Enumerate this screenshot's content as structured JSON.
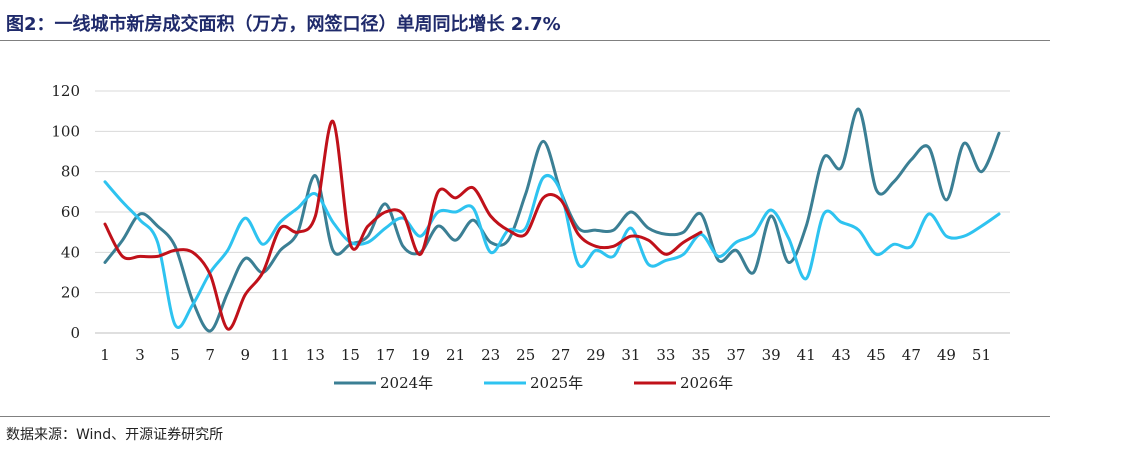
{
  "header": {
    "title": "图2：一线城市新房成交面积（万方，网签口径）单周同比增长 2.7%"
  },
  "footer": {
    "source": "数据来源：Wind、开源证券研究所"
  },
  "chart_data": {
    "type": "line",
    "title": "图2：一线城市新房成交面积（万方，网签口径）单周同比增长 2.7%",
    "xlabel": "",
    "ylabel": "",
    "ylim": [
      0,
      120
    ],
    "yticks": [
      0,
      20,
      40,
      60,
      80,
      100,
      120
    ],
    "xticks": [
      1,
      3,
      5,
      7,
      9,
      11,
      13,
      15,
      17,
      19,
      21,
      23,
      25,
      27,
      29,
      31,
      33,
      35,
      37,
      39,
      41,
      43,
      45,
      47,
      49,
      51
    ],
    "xlim": [
      1,
      52
    ],
    "grid": "horizontal",
    "legend": "bottom",
    "series": [
      {
        "name": "2024年",
        "color": "#3b7f94",
        "x": [
          1,
          2,
          3,
          4,
          5,
          6,
          7,
          8,
          9,
          10,
          11,
          12,
          13,
          14,
          15,
          16,
          17,
          18,
          19,
          20,
          21,
          22,
          23,
          24,
          25,
          26,
          27,
          28,
          29,
          30,
          31,
          32,
          33,
          34,
          35,
          36,
          37,
          38,
          39,
          40,
          41,
          42,
          43,
          44,
          45,
          46,
          47,
          48,
          49,
          50,
          51,
          52
        ],
        "values": [
          35,
          46,
          59,
          53,
          43,
          16,
          1,
          20,
          37,
          30,
          41,
          50,
          78,
          41,
          44,
          48,
          64,
          43,
          40,
          53,
          46,
          56,
          45,
          46,
          69,
          95,
          70,
          52,
          51,
          51,
          60,
          52,
          49,
          50,
          59,
          36,
          41,
          30,
          58,
          35,
          53,
          87,
          82,
          111,
          71,
          75,
          86,
          92,
          66,
          94,
          80,
          99
        ]
      },
      {
        "name": "2025年",
        "color": "#2ec3f0",
        "x": [
          1,
          2,
          3,
          4,
          5,
          6,
          7,
          8,
          9,
          10,
          11,
          12,
          13,
          14,
          15,
          16,
          17,
          18,
          19,
          20,
          21,
          22,
          23,
          24,
          25,
          26,
          27,
          28,
          29,
          30,
          31,
          32,
          33,
          34,
          35,
          36,
          37,
          38,
          39,
          40,
          41,
          42,
          43,
          44,
          45,
          46,
          47,
          48,
          49,
          50,
          51,
          52
        ],
        "values": [
          75,
          65,
          56,
          45,
          4,
          14,
          30,
          41,
          57,
          44,
          55,
          62,
          69,
          55,
          45,
          45,
          52,
          57,
          48,
          60,
          60,
          62,
          40,
          51,
          52,
          77,
          70,
          34,
          41,
          38,
          52,
          34,
          36,
          39,
          49,
          38,
          45,
          49,
          61,
          47,
          27,
          59,
          55,
          51,
          39,
          44,
          43,
          59,
          48,
          48,
          53,
          59
        ]
      },
      {
        "name": "2026年",
        "color": "#c0111a",
        "x": [
          1,
          2,
          3,
          4,
          5,
          6,
          7,
          8,
          9,
          10,
          11,
          12,
          13,
          14,
          15,
          16,
          17,
          18,
          19,
          20,
          21,
          22,
          23,
          24,
          25,
          26,
          27,
          28,
          29,
          30,
          31,
          32,
          33,
          34,
          35
        ],
        "values": [
          54,
          38,
          38,
          38,
          41,
          40,
          29,
          2,
          19,
          30,
          52,
          50,
          58,
          105,
          44,
          53,
          60,
          59,
          39,
          70,
          67,
          72,
          58,
          51,
          49,
          67,
          66,
          49,
          43,
          43,
          48,
          46,
          39,
          45,
          50
        ]
      }
    ]
  }
}
